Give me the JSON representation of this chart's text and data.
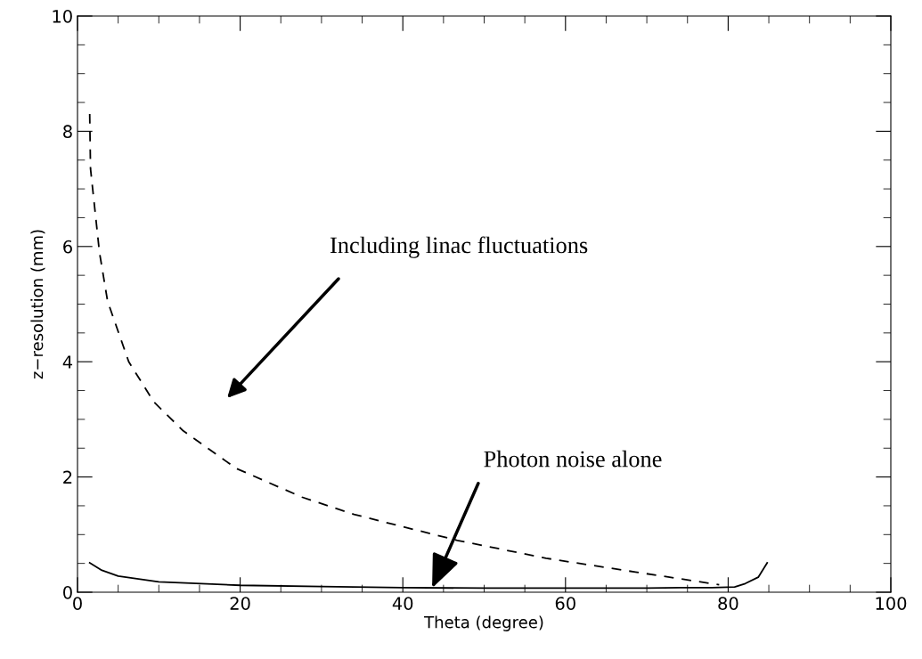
{
  "chart_data": {
    "type": "line",
    "xlabel": "Theta (degree)",
    "ylabel": "z−resolution (mm)",
    "xlim": [
      0,
      100
    ],
    "xticks": [
      0,
      20,
      40,
      60,
      80,
      100
    ],
    "ylim": [
      0,
      10
    ],
    "yticks": [
      0,
      2,
      4,
      6,
      8,
      10
    ],
    "grid": false,
    "legend": false,
    "marker": "none",
    "series": [
      {
        "color": "#000000",
        "line_style": "dashed",
        "x": [
          1.5,
          1.6,
          2.7,
          3.7,
          6.3,
          9.4,
          13,
          19.5,
          27.6,
          34,
          46.7,
          57.6,
          68.6,
          78.9
        ],
        "values": [
          8.3,
          7.35,
          5.9,
          5.05,
          4.0,
          3.3,
          2.8,
          2.15,
          1.65,
          1.35,
          0.9,
          0.59,
          0.35,
          0.13
        ]
      },
      {
        "color": "#000000",
        "line_style": "solid",
        "x": [
          1.5,
          3,
          5,
          10,
          20,
          30,
          40,
          50,
          60,
          70,
          75,
          78,
          80.8,
          82.1,
          83.7,
          84.8
        ],
        "values": [
          0.51,
          0.38,
          0.28,
          0.18,
          0.12,
          0.1,
          0.08,
          0.07,
          0.07,
          0.07,
          0.08,
          0.08,
          0.09,
          0.15,
          0.26,
          0.51
        ]
      }
    ],
    "annotations": [
      "Including linac fluctuations",
      {
        "text": "Photon noise alone",
        "x": 43.6,
        "y": 0.07
      }
    ]
  }
}
